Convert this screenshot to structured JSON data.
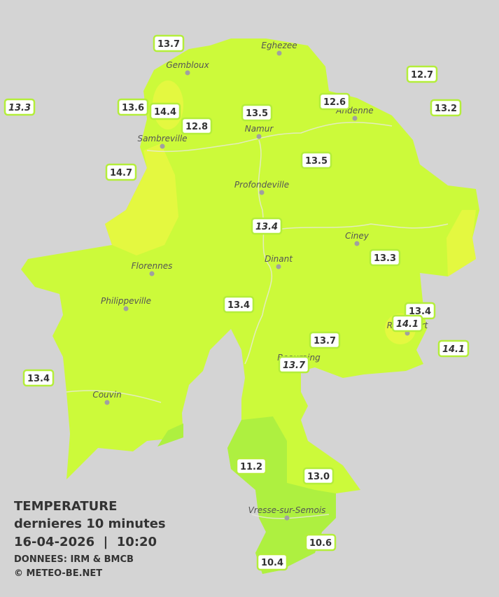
{
  "map": {
    "cities": [
      "Eghezee",
      "Gembloux",
      "Andenne",
      "Namur",
      "Sambreville",
      "Profondeville",
      "Ciney",
      "Dinant",
      "Florennes",
      "Philippeville",
      "Rochefort",
      "Beauraing",
      "Couvin",
      "Vresse-sur-Semois"
    ],
    "stations": [
      {
        "label": "13.7",
        "italic": false
      },
      {
        "label": "12.7",
        "italic": false
      },
      {
        "label": "13.3",
        "italic": true
      },
      {
        "label": "13.6",
        "italic": false
      },
      {
        "label": "14.4",
        "italic": false
      },
      {
        "label": "12.6",
        "italic": false
      },
      {
        "label": "13.5",
        "italic": false
      },
      {
        "label": "13.2",
        "italic": false
      },
      {
        "label": "12.8",
        "italic": false
      },
      {
        "label": "13.5",
        "italic": false
      },
      {
        "label": "14.7",
        "italic": false
      },
      {
        "label": "13.4",
        "italic": true
      },
      {
        "label": "13.3",
        "italic": false
      },
      {
        "label": "13.4",
        "italic": false
      },
      {
        "label": "13.4",
        "italic": false
      },
      {
        "label": "14.1",
        "italic": true
      },
      {
        "label": "13.7",
        "italic": false
      },
      {
        "label": "14.1",
        "italic": true
      },
      {
        "label": "13.7",
        "italic": true
      },
      {
        "label": "13.4",
        "italic": false
      },
      {
        "label": "11.2",
        "italic": false
      },
      {
        "label": "13.0",
        "italic": false
      },
      {
        "label": "10.6",
        "italic": false
      },
      {
        "label": "10.4",
        "italic": false
      }
    ],
    "legend": {
      "title": "TEMPERATURE",
      "subtitle": "dernieres 10 minutes",
      "datetime": "16-04-2026  |  10:20",
      "source": "DONNEES: IRM & BMCB",
      "credit": "© METEO-BE.NET"
    }
  }
}
